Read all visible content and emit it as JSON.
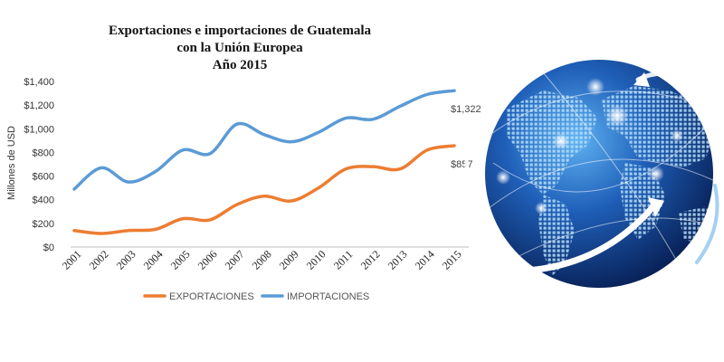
{
  "colors": {
    "exports": "#ED7D31",
    "imports": "#5B9BD5",
    "axis": "#BFBFBF",
    "globe_dark": "#0A2A66",
    "globe_light": "#2E7FD8",
    "land": "#A8D8F8"
  },
  "decoration": {
    "globe_icon": "globe-icon"
  },
  "chart_data": {
    "type": "line",
    "title_lines": [
      "Exportaciones  e importaciones  de Guatemala",
      "con la Unión Europea",
      "Año 2015"
    ],
    "xlabel": "",
    "ylabel": "Millones de USD",
    "ylim": [
      0,
      1400
    ],
    "y_ticks": [
      0,
      200,
      400,
      600,
      800,
      1000,
      1200,
      1400
    ],
    "y_tick_labels": [
      "$0",
      "$200",
      "$400",
      "$600",
      "$800",
      "$1,000",
      "$1,200",
      "$1,400"
    ],
    "grid": false,
    "legend_position": "bottom",
    "categories": [
      "2001",
      "2002",
      "2003",
      "2004",
      "2005",
      "2006",
      "2007",
      "2008",
      "2009",
      "2010",
      "2011",
      "2012",
      "2013",
      "2014",
      "2015"
    ],
    "series": [
      {
        "name": "EXPORTACIONES",
        "color": "#ED7D31",
        "values": [
          140,
          115,
          140,
          150,
          240,
          230,
          360,
          430,
          390,
          500,
          660,
          680,
          660,
          820,
          857
        ],
        "end_label": "$857"
      },
      {
        "name": "IMPORTACIONES",
        "color": "#5B9BD5",
        "values": [
          490,
          670,
          550,
          640,
          820,
          790,
          1040,
          950,
          890,
          970,
          1090,
          1080,
          1190,
          1290,
          1322
        ],
        "end_label": "$1,322"
      }
    ]
  }
}
